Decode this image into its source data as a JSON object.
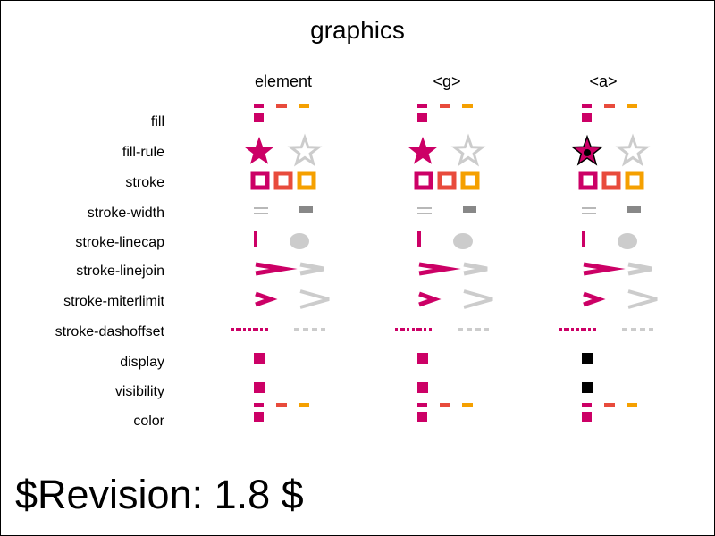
{
  "title": "graphics",
  "columns": [
    {
      "header": "element",
      "variant": "normal"
    },
    {
      "header": "<g>",
      "variant": "normal"
    },
    {
      "header": "<a>",
      "variant": "anchor"
    }
  ],
  "rows": [
    {
      "key": "fill",
      "label": "fill"
    },
    {
      "key": "fill-rule",
      "label": "fill-rule"
    },
    {
      "key": "stroke",
      "label": "stroke"
    },
    {
      "key": "stroke-width",
      "label": "stroke-width"
    },
    {
      "key": "stroke-linecap",
      "label": "stroke-linecap"
    },
    {
      "key": "stroke-linejoin",
      "label": "stroke-linejoin"
    },
    {
      "key": "stroke-miterlimit",
      "label": "stroke-miterlimit"
    },
    {
      "key": "stroke-dashoffset",
      "label": "stroke-dashoffset"
    },
    {
      "key": "display",
      "label": "display"
    },
    {
      "key": "visibility",
      "label": "visibility"
    },
    {
      "key": "color",
      "label": "color"
    }
  ],
  "colors": {
    "magenta": "#cc0066",
    "red_orange": "#e84b3c",
    "orange": "#f5a000",
    "gray_light": "#cccccc",
    "gray_mid": "#888888",
    "black": "#000000"
  },
  "footer": {
    "revision": "$Revision: 1.8 $"
  }
}
